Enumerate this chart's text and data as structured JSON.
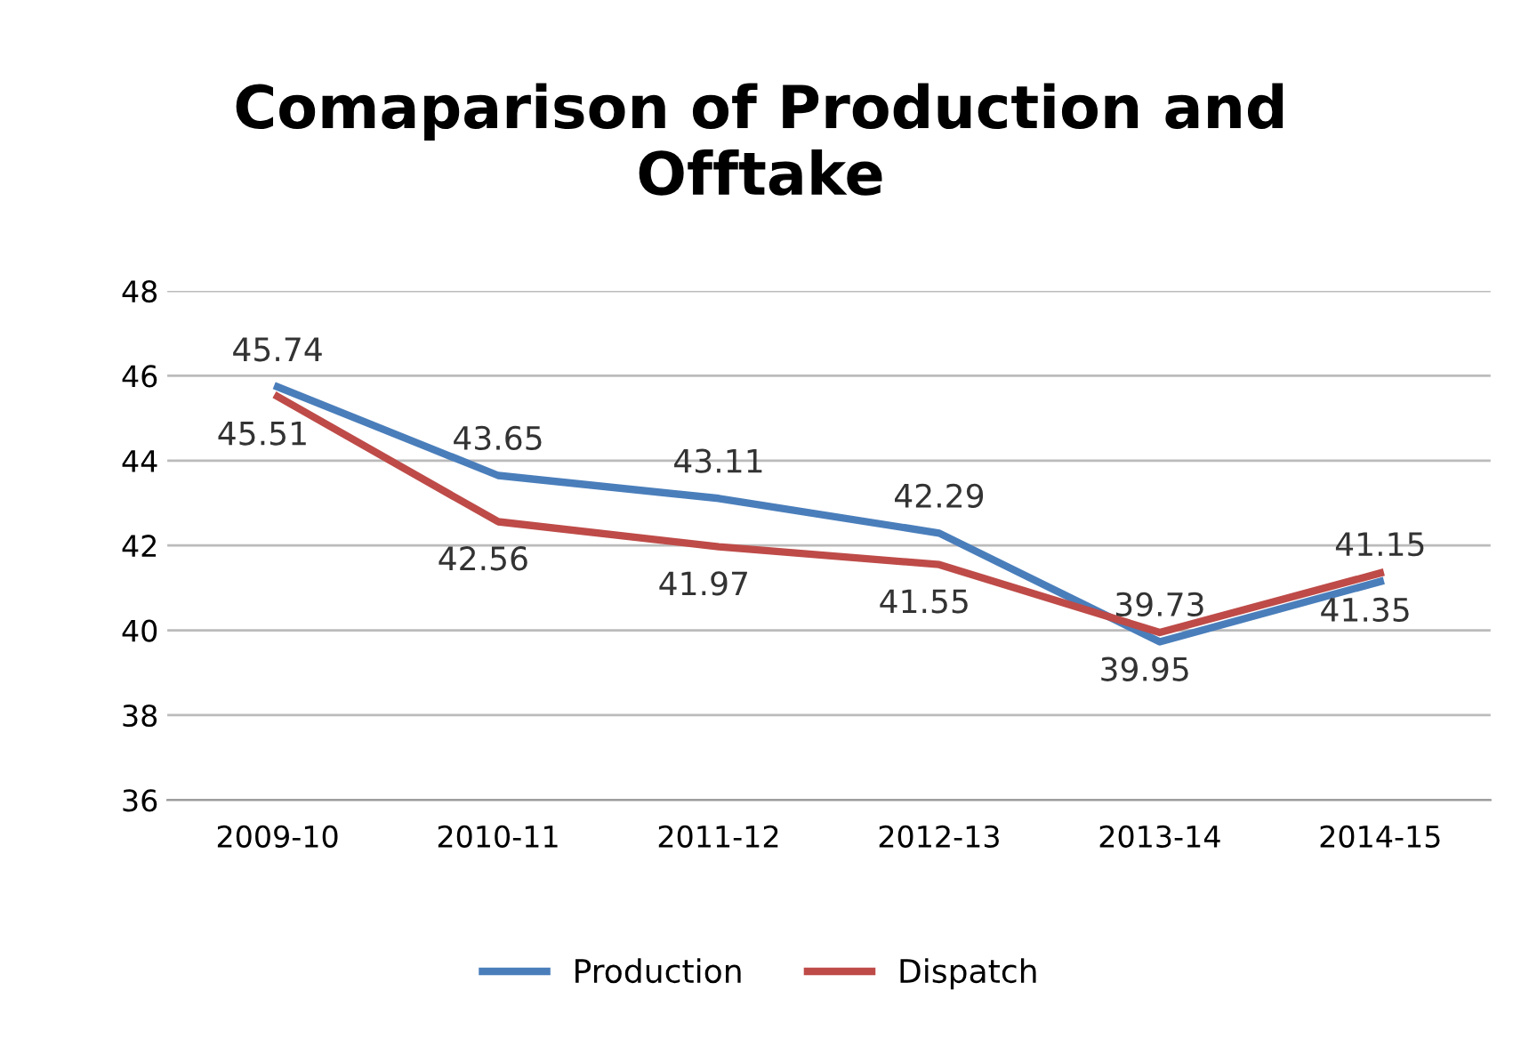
{
  "chart_data": {
    "type": "line",
    "title": "Comaparison of Production and\nOfftake",
    "categories": [
      "2009-10",
      "2010-11",
      "2011-12",
      "2012-13",
      "2013-14",
      "2014-15"
    ],
    "series": [
      {
        "name": "Production",
        "color": "#4a7ebb",
        "values": [
          45.74,
          43.65,
          43.11,
          42.29,
          39.73,
          41.15
        ]
      },
      {
        "name": "Dispatch",
        "color": "#be4b48",
        "values": [
          45.51,
          42.56,
          41.97,
          41.55,
          39.95,
          41.35
        ]
      }
    ],
    "ylim": [
      36,
      48
    ],
    "yticks": [
      36,
      38,
      40,
      42,
      44,
      46,
      48
    ],
    "grid": "y",
    "legend": "bottom",
    "data_labels": true,
    "marker": "none",
    "line_style": "solid"
  }
}
